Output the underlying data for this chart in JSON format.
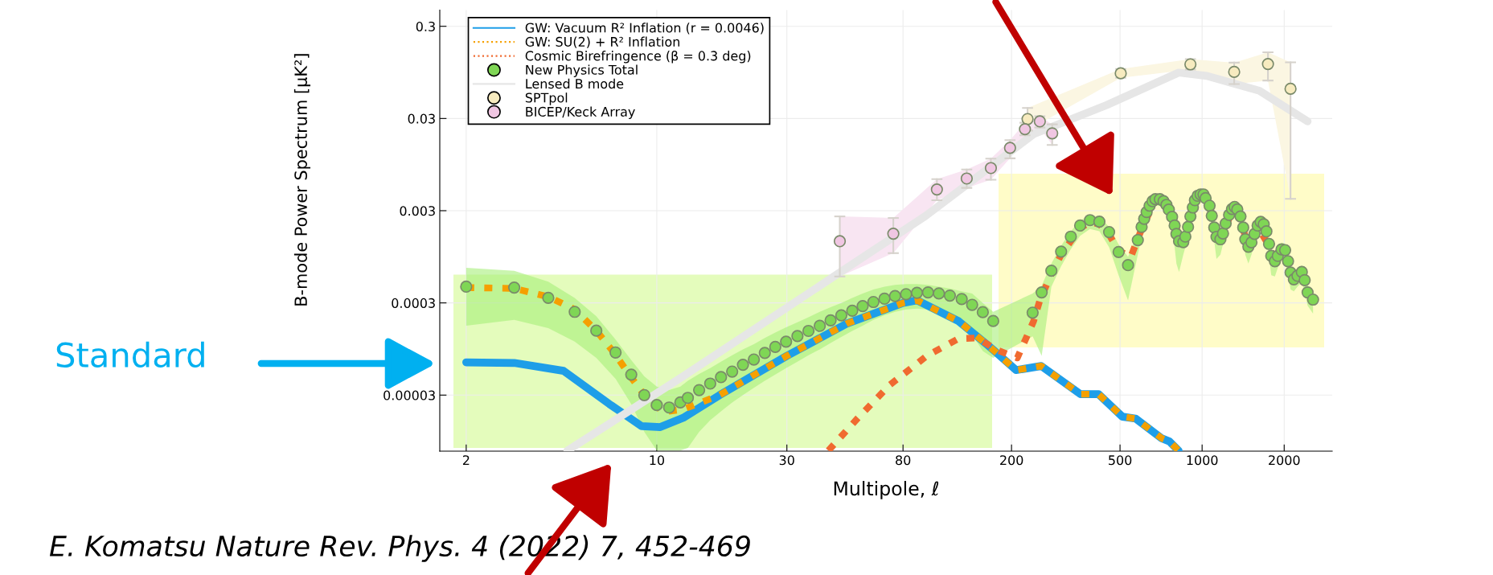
{
  "chart_data": {
    "type": "scatter",
    "xlabel": "Multipole, ℓ",
    "ylabel": "B-mode Power Spectrum [μK²]",
    "log": "xy",
    "xlim": [
      1.6,
      3000
    ],
    "ylim": [
      7.4e-06,
      0.45
    ],
    "xticks": [
      2,
      10,
      30,
      80,
      200,
      500,
      1000,
      2000
    ],
    "yticks": [
      {
        "value": 3e-05,
        "label": "0.00003"
      },
      0.0003,
      0.003,
      0.03,
      0.3
    ],
    "grid": true,
    "legend": "top left",
    "annotations": [
      "Standard",
      "E. Komatsu Nature Rev. Phys. 4 (2022) 7, 452-469"
    ],
    "series": [
      {
        "name": "GW: Vacuum R² Inflation (r = 0.0046)",
        "type": "line",
        "line_style": "solid",
        "color": "#1e9ee8",
        "x": [
          2,
          3,
          4.55,
          6.7,
          8.8,
          10.3,
          12.5,
          17,
          30,
          50,
          80,
          90,
          128,
          162,
          172.7,
          207.7,
          257,
          358,
          417,
          510,
          570,
          711,
          760,
          820
        ],
        "values": [
          6.8e-05,
          6.7e-05,
          5.5e-05,
          2.4e-05,
          1.38e-05,
          1.35e-05,
          1.7e-05,
          3e-05,
          8e-05,
          0.00018,
          0.0003,
          0.00032,
          0.00019,
          0.000107,
          9.1e-05,
          5.6e-05,
          6.2e-05,
          3.07e-05,
          3.07e-05,
          1.75e-05,
          1.67e-05,
          1.02e-05,
          9.4e-06,
          7.5e-06
        ]
      },
      {
        "name": "GW: SU(2) + R² Inflation",
        "type": "line",
        "line_style": "dotted",
        "color": "#f5a000",
        "x": [
          2,
          3,
          4,
          5,
          6,
          7,
          8,
          9,
          10,
          11,
          12.5,
          17,
          30,
          50,
          80,
          90,
          128,
          162,
          172.7,
          207.7,
          257,
          358,
          417,
          510,
          570,
          711,
          760,
          820
        ],
        "values": [
          0.00044,
          0.00043,
          0.00035,
          0.000255,
          0.00015,
          8.5e-05,
          4.8e-05,
          3e-05,
          2.2e-05,
          2e-05,
          2.1e-05,
          3e-05,
          8e-05,
          0.00018,
          0.0003,
          0.00032,
          0.00019,
          0.000107,
          9.1e-05,
          5.6e-05,
          6.2e-05,
          3.07e-05,
          3.07e-05,
          1.75e-05,
          1.67e-05,
          1.02e-05,
          9.4e-06,
          7.5e-06
        ]
      },
      {
        "name": "Cosmic Birefringence (β = 0.3 deg)",
        "type": "line",
        "line_style": "dotted",
        "color": "#f06a30",
        "x": [
          42.6,
          54.7,
          71.8,
          97.9,
          128,
          150,
          176,
          210,
          241,
          254,
          280,
          304,
          357,
          388,
          420,
          456,
          494,
          548,
          600,
          674,
          722,
          776,
          853,
          925,
          1000,
          1065,
          1167,
          1287,
          1383,
          1478,
          1598,
          1760,
          1849
        ],
        "values": [
          7.5e-06,
          1.7e-05,
          3.9e-05,
          8e-05,
          0.000123,
          0.000125,
          9.3e-05,
          7.6e-05,
          0.00019,
          0.00032,
          0.00062,
          0.001,
          0.00195,
          0.00225,
          0.00215,
          0.00165,
          0.0011,
          0.00095,
          0.0019,
          0.0039,
          0.0037,
          0.0025,
          0.0013,
          0.0031,
          0.0044,
          0.0033,
          0.0014,
          0.003,
          0.0025,
          0.00115,
          0.002,
          0.00125,
          0.0008
        ]
      },
      {
        "name": "New Physics Total",
        "marker": "circle",
        "color": "#7fd655",
        "x": [
          2,
          3,
          4,
          5,
          6,
          7.06,
          8.06,
          9,
          10,
          11.1,
          12.2,
          13,
          14.3,
          15.7,
          17.2,
          18.9,
          20.7,
          22.7,
          24.9,
          27.2,
          29.8,
          32.8,
          36,
          39.6,
          43.4,
          47.5,
          52.1,
          56.9,
          62.3,
          68.4,
          74.8,
          82.1,
          90,
          98.8,
          108.3,
          118.8,
          131.3,
          143.4,
          156.9,
          171.3,
          239,
          258,
          280,
          304,
          330,
          357,
          388,
          420,
          456,
          494,
          535,
          581,
          600,
          613,
          626,
          642,
          658,
          674,
          700,
          722,
          740,
          755,
          776,
          793,
          805,
          823,
          853,
          868,
          888,
          906,
          925,
          941,
          963,
          987,
          1012,
          1030,
          1065,
          1085,
          1108,
          1129,
          1167,
          1193,
          1220,
          1256,
          1287,
          1316,
          1346,
          1383,
          1415,
          1440,
          1478,
          1517,
          1557,
          1598,
          1640,
          1683,
          1721,
          1760,
          1793,
          1849,
          1895,
          1955,
          2016,
          2066,
          2111,
          2170,
          2238,
          2321,
          2378,
          2437,
          2552
        ],
        "values": [
          0.00045,
          0.00044,
          0.00034,
          0.00024,
          0.00015,
          8.7e-05,
          5e-05,
          3e-05,
          2.34e-05,
          2.2e-05,
          2.5e-05,
          2.8e-05,
          3.4e-05,
          4e-05,
          4.7e-05,
          5.4e-05,
          6.4e-05,
          7.3e-05,
          8.6e-05,
          0.0001,
          0.000114,
          0.000131,
          0.000149,
          0.000169,
          0.000194,
          0.00022,
          0.000247,
          0.000277,
          0.000307,
          0.000333,
          0.000356,
          0.000373,
          0.000386,
          0.00039,
          0.00038,
          0.00036,
          0.00033,
          0.000286,
          0.000238,
          0.000191,
          0.000235,
          0.00039,
          0.00067,
          0.00108,
          0.00157,
          0.00207,
          0.00237,
          0.00228,
          0.00176,
          0.00107,
          0.00077,
          0.00144,
          0.002,
          0.00245,
          0.0029,
          0.0034,
          0.0038,
          0.004,
          0.004,
          0.0038,
          0.00347,
          0.00308,
          0.00257,
          0.00207,
          0.00168,
          0.0014,
          0.00137,
          0.00157,
          0.002,
          0.0026,
          0.00325,
          0.0039,
          0.00435,
          0.0045,
          0.0045,
          0.0041,
          0.0034,
          0.00264,
          0.00197,
          0.00156,
          0.00147,
          0.0017,
          0.00218,
          0.0027,
          0.00313,
          0.0033,
          0.0031,
          0.0026,
          0.00197,
          0.00147,
          0.00122,
          0.00136,
          0.00168,
          0.00207,
          0.00227,
          0.00214,
          0.00179,
          0.00131,
          0.00097,
          0.00085,
          0.00097,
          0.00114,
          0.00112,
          0.00085,
          0.00064,
          0.00054,
          0.00059,
          0.00065,
          0.00053,
          0.00039,
          0.000326
        ],
        "lower": [
          0.00017,
          0.000196,
          0.00016,
          0.000114,
          7.6e-05,
          4.5e-05,
          2.4e-05,
          1.2e-05,
          7.5e-06,
          7.5e-06,
          7.5e-06,
          8e-06,
          1.2e-05,
          1.6e-05,
          2e-05,
          2.5e-05,
          3e-05,
          3.6e-05,
          4.3e-05,
          5e-05,
          5.9e-05,
          6.9e-05,
          8.1e-05,
          9.4e-05,
          0.00011,
          0.000128,
          0.000149,
          0.00017,
          0.000196,
          0.00022,
          0.00024,
          0.000255,
          0.00026,
          0.000255,
          0.00024,
          0.000215,
          0.00018,
          0.000136,
          9e-05,
          7.6e-05,
          0.00013,
          8e-05,
          0.00045,
          0.00075,
          0.00115,
          0.0016,
          0.0019,
          0.0018,
          0.0012,
          0.0006,
          0.00032,
          0.001,
          0.00155,
          0.00195,
          0.0023,
          0.0028,
          0.0032,
          0.0034,
          0.0034,
          0.0031,
          0.0028,
          0.0024,
          0.0019,
          0.0012,
          0.0008,
          0.00065,
          0.001,
          0.0012,
          0.0016,
          0.0021,
          0.0027,
          0.0033,
          0.0037,
          0.0039,
          0.0039,
          0.0035,
          0.0028,
          0.0021,
          0.0014,
          0.0009,
          0.001,
          0.0013,
          0.00175,
          0.0022,
          0.0026,
          0.0028,
          0.0026,
          0.0021,
          0.0015,
          0.001,
          0.0008,
          0.001,
          0.0013,
          0.00165,
          0.00185,
          0.00175,
          0.0014,
          0.00095,
          0.0006,
          0.00058,
          0.00072,
          0.0009,
          0.00087,
          0.0006,
          0.00042,
          0.0004,
          0.00045,
          0.0005,
          0.0004,
          0.00028,
          0.00023
        ],
        "upper": [
          0.00072,
          0.00067,
          0.00051,
          0.00034,
          0.000215,
          0.00012,
          7.2e-05,
          4.8e-05,
          3.7e-05,
          3.4e-05,
          3.7e-05,
          4.3e-05,
          5.1e-05,
          5.9e-05,
          6.9e-05,
          8.1e-05,
          9.4e-05,
          0.000107,
          0.000125,
          0.000143,
          0.000163,
          0.000185,
          0.00021,
          0.00024,
          0.00027,
          0.0003,
          0.00034,
          0.00038,
          0.00042,
          0.00045,
          0.00047,
          0.00048,
          0.00048,
          0.00047,
          0.00045,
          0.00043,
          0.0004,
          0.00038,
          0.0003,
          0.00024,
          0.00038,
          0.00046,
          0.0008,
          0.00125,
          0.0018,
          0.00235,
          0.00265,
          0.0026,
          0.002,
          0.0013,
          0.00095,
          0.0017,
          0.0023,
          0.0028,
          0.0033,
          0.0039,
          0.0043,
          0.0045,
          0.0045,
          0.0043,
          0.0039,
          0.0035,
          0.0029,
          0.0024,
          0.0019,
          0.0016,
          0.0016,
          0.0018,
          0.0023,
          0.0029,
          0.0036,
          0.0043,
          0.0048,
          0.005,
          0.005,
          0.0046,
          0.0038,
          0.003,
          0.0023,
          0.0018,
          0.0017,
          0.00195,
          0.0025,
          0.0031,
          0.0035,
          0.0037,
          0.0035,
          0.003,
          0.0023,
          0.00175,
          0.00145,
          0.0016,
          0.00195,
          0.0024,
          0.0026,
          0.0025,
          0.0021,
          0.00155,
          0.00115,
          0.001,
          0.00115,
          0.00135,
          0.00132,
          0.00102,
          0.00078,
          0.00065,
          0.0007,
          0.00077,
          0.00064,
          0.00047,
          0.00039
        ]
      },
      {
        "name": "Lensed B mode",
        "type": "line",
        "line_style": "solid",
        "color": "#e6e6e6",
        "x": [
          4.7,
          12.5,
          46.9,
          96.9,
          241,
          446,
          821,
          1040,
          1623,
          2437
        ],
        "values": [
          7.5e-06,
          4.8e-05,
          0.00064,
          0.00264,
          0.0203,
          0.0419,
          0.0944,
          0.087,
          0.06,
          0.0279
        ]
      },
      {
        "name": "SPTpol",
        "marker": "circle",
        "color": "#f7ebbf",
        "lower": [
          0.0222,
          0.083,
          0.102,
          0.071,
          0.0774,
          0.00404
        ],
        "upper": [
          0.039,
          0.1035,
          0.132,
          0.121,
          0.157,
          0.122
        ],
        "x": [
          229,
          503,
          906,
          1311,
          1744,
          2110
        ],
        "values": [
          0.0296,
          0.0927,
          0.116,
          0.096,
          0.117,
          0.063
        ],
        "errors": [
          [
            0.0222,
            0.039
          ],
          [
            0.083,
            0.1035
          ],
          [
            0.102,
            0.132
          ],
          [
            0.071,
            0.121
          ],
          [
            0.0774,
            0.157
          ],
          [
            0.00404,
            0.122
          ]
        ]
      },
      {
        "name": "BICEP/Keck Array",
        "marker": "circle",
        "color": "#f0c6e2",
        "lower": [
          0.00058,
          0.00104,
          0.0039,
          0.0053,
          0.0065,
          0.0111,
          0.0197,
          0.0239,
          0.0155
        ],
        "upper": [
          0.0026,
          0.0025,
          0.0066,
          0.0084,
          0.011,
          0.0175,
          0.027,
          0.0318,
          0.0259
        ],
        "x": [
          46.9,
          73.7,
          106.5,
          137,
          168,
          197.5,
          224,
          254,
          282
        ],
        "values": [
          0.0014,
          0.00169,
          0.0051,
          0.0067,
          0.0087,
          0.0144,
          0.023,
          0.0279,
          0.0207
        ],
        "errors": [
          [
            0.00058,
            0.0026
          ],
          [
            0.00104,
            0.0025
          ],
          [
            0.0039,
            0.0066
          ],
          [
            0.0053,
            0.0084
          ],
          [
            0.0065,
            0.011
          ],
          [
            0.0111,
            0.0175
          ],
          [
            0.0197,
            0.027
          ],
          [
            0.0239,
            0.0318
          ],
          [
            0.0155,
            0.0259
          ]
        ]
      }
    ]
  }
}
